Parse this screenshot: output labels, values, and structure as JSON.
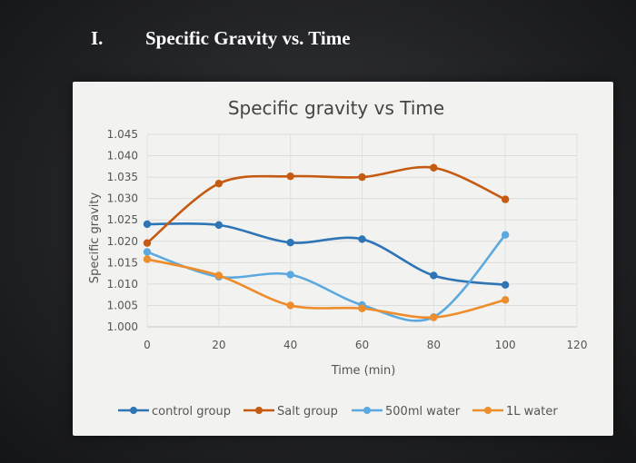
{
  "heading": {
    "number": "I.",
    "title": "Specific Gravity vs. Time"
  },
  "chart_data": {
    "type": "line",
    "title": "Specific gravity vs Time",
    "xlabel": "Time (min)",
    "ylabel": "Specific gravity",
    "xlim": [
      0,
      120
    ],
    "ylim": [
      1.0,
      1.045
    ],
    "xticks": [
      "0",
      "20",
      "40",
      "60",
      "80",
      "100",
      "120"
    ],
    "yticks": [
      "1.000",
      "1.005",
      "1.010",
      "1.015",
      "1.020",
      "1.025",
      "1.030",
      "1.035",
      "1.040",
      "1.045"
    ],
    "grid": true,
    "legend_position": "bottom",
    "x": [
      0,
      20,
      40,
      60,
      80,
      100
    ],
    "series": [
      {
        "name": "control group",
        "color": "#2e75b6",
        "values": [
          1.024,
          1.0238,
          1.0197,
          1.0205,
          1.012,
          1.0098
        ]
      },
      {
        "name": "Salt group",
        "color": "#c55a11",
        "values": [
          1.0196,
          1.0335,
          1.0352,
          1.035,
          1.0372,
          1.0298
        ]
      },
      {
        "name": "500ml water",
        "color": "#5ba9df",
        "values": [
          1.0175,
          1.0117,
          1.0122,
          1.0051,
          1.0023,
          1.0215
        ]
      },
      {
        "name": "1L water",
        "color": "#ed8d2c",
        "values": [
          1.0158,
          1.012,
          1.005,
          1.0043,
          1.0022,
          1.0063
        ]
      }
    ]
  }
}
